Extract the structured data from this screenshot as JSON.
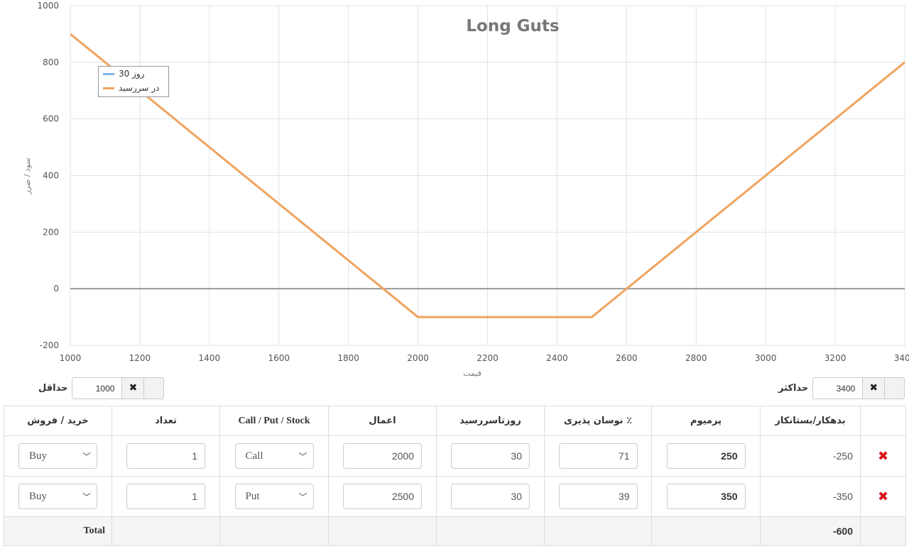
{
  "chart_data": {
    "type": "line",
    "title": "Long Guts",
    "xlabel": "قیمت",
    "ylabel": "سود / ضرر",
    "xlim": [
      1000,
      3400
    ],
    "ylim": [
      -200,
      1000
    ],
    "x_ticks": [
      1000,
      1200,
      1400,
      1600,
      1800,
      2000,
      2200,
      2400,
      2600,
      2800,
      3000,
      3200,
      3400
    ],
    "y_ticks": [
      -200,
      0,
      200,
      400,
      600,
      800,
      1000
    ],
    "grid": true,
    "legend_placement": "top-left",
    "series": [
      {
        "name": "روز 30",
        "color": "#7cb5ec",
        "x": [],
        "y": []
      },
      {
        "name": "در سررسید",
        "color": "#f0a35e",
        "x": [
          1000,
          2000,
          2500,
          3400
        ],
        "y": [
          900,
          -100,
          -100,
          800
        ]
      }
    ]
  },
  "range": {
    "min_label": "حداقل",
    "min_value": "1000",
    "max_label": "حداکثر",
    "max_value": "3400",
    "clear_icon": "✖"
  },
  "table": {
    "headers": {
      "buy_sell": "خرید / فروش",
      "qty": "تعداد",
      "type": "Call / Put / Stock",
      "strike": "اعمال",
      "days": "روزتاسررسید",
      "vol": "٪ نوسان پذیری",
      "premium": "پرمیوم",
      "debit": "بدهکار/بستانکار"
    },
    "rows": [
      {
        "buy_sell": "Buy",
        "qty": "1",
        "type": "Call",
        "strike": "2000",
        "days": "30",
        "vol": "71",
        "premium": "250",
        "debit": "-250",
        "delete_icon": "✖"
      },
      {
        "buy_sell": "Buy",
        "qty": "1",
        "type": "Put",
        "strike": "2500",
        "days": "30",
        "vol": "39",
        "premium": "350",
        "debit": "-350",
        "delete_icon": "✖"
      }
    ],
    "total_label": "Total",
    "total_value": "-600"
  }
}
